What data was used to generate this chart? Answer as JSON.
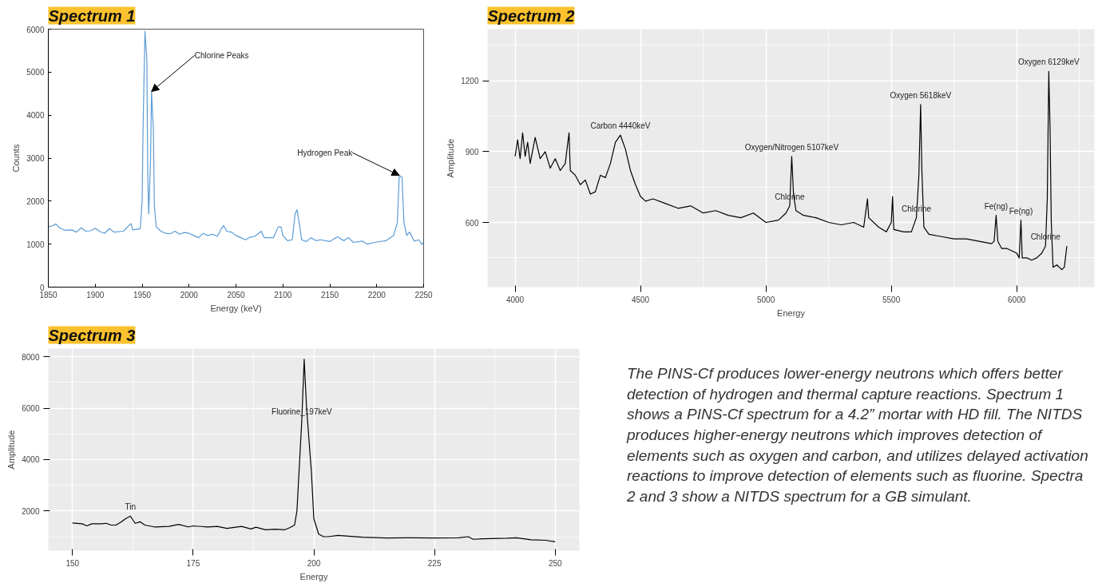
{
  "chart_data": [
    {
      "type": "line",
      "title": "Spectrum 1",
      "xlabel": "Energy (keV)",
      "ylabel": "Counts",
      "color": "#5b9bd5",
      "xlim": [
        1850,
        2250
      ],
      "ylim": [
        0,
        6000
      ],
      "xticks": [
        1850,
        1900,
        1950,
        2000,
        2050,
        2100,
        2150,
        2200,
        2250
      ],
      "yticks": [
        0,
        1000,
        2000,
        3000,
        4000,
        5000,
        6000
      ],
      "x": [
        1850,
        1855,
        1858,
        1862,
        1868,
        1875,
        1880,
        1885,
        1890,
        1895,
        1900,
        1905,
        1910,
        1915,
        1920,
        1930,
        1938,
        1940,
        1948,
        1950,
        1951,
        1953,
        1955,
        1956,
        1957,
        1959,
        1960,
        1962,
        1963,
        1965,
        1970,
        1975,
        1980,
        1985,
        1990,
        1995,
        2000,
        2005,
        2010,
        2015,
        2020,
        2025,
        2030,
        2035,
        2037,
        2040,
        2045,
        2050,
        2055,
        2060,
        2065,
        2070,
        2077,
        2080,
        2090,
        2095,
        2098,
        2100,
        2105,
        2110,
        2113,
        2115,
        2117,
        2120,
        2125,
        2130,
        2135,
        2140,
        2150,
        2158,
        2165,
        2170,
        2175,
        2185,
        2190,
        2200,
        2210,
        2218,
        2222,
        2224,
        2227,
        2229,
        2232,
        2235,
        2240,
        2245,
        2248,
        2250
      ],
      "values": [
        1400,
        1430,
        1470,
        1380,
        1320,
        1330,
        1280,
        1380,
        1300,
        1310,
        1370,
        1290,
        1250,
        1360,
        1280,
        1300,
        1480,
        1330,
        1360,
        2000,
        3700,
        5950,
        5300,
        2600,
        1700,
        3000,
        4550,
        3650,
        1900,
        1400,
        1300,
        1250,
        1240,
        1300,
        1230,
        1270,
        1250,
        1200,
        1150,
        1250,
        1200,
        1230,
        1180,
        1380,
        1430,
        1300,
        1280,
        1200,
        1150,
        1100,
        1160,
        1180,
        1300,
        1150,
        1150,
        1400,
        1400,
        1200,
        1080,
        1100,
        1700,
        1800,
        1550,
        1100,
        1060,
        1150,
        1080,
        1100,
        1060,
        1170,
        1080,
        1150,
        1040,
        1070,
        1000,
        1050,
        1080,
        1200,
        1500,
        2600,
        2550,
        1500,
        1200,
        1280,
        1070,
        1100,
        990,
        1050
      ],
      "annotations": [
        {
          "text": "Chlorine Peaks",
          "x": 1960,
          "y": 4550
        },
        {
          "text": "Hydrogen Peak",
          "x": 2224,
          "y": 2600
        }
      ]
    },
    {
      "type": "line",
      "title": "Spectrum 2",
      "xlabel": "Energy",
      "ylabel": "Amplitude",
      "color": "#000000",
      "xlim": [
        3890,
        6310
      ],
      "ylim": [
        326,
        1419
      ],
      "xticks": [
        4000,
        4500,
        5000,
        5500,
        6000
      ],
      "yticks": [
        600,
        900,
        1200
      ],
      "grid": true,
      "x": [
        4000,
        4010,
        4020,
        4030,
        4040,
        4050,
        4060,
        4080,
        4100,
        4120,
        4140,
        4160,
        4180,
        4200,
        4215,
        4220,
        4240,
        4260,
        4280,
        4300,
        4320,
        4340,
        4360,
        4380,
        4400,
        4420,
        4440,
        4460,
        4480,
        4500,
        4520,
        4550,
        4600,
        4650,
        4700,
        4750,
        4800,
        4850,
        4900,
        4950,
        5000,
        5050,
        5080,
        5095,
        5103,
        5110,
        5120,
        5150,
        5200,
        5250,
        5300,
        5350,
        5390,
        5400,
        5405,
        5410,
        5450,
        5480,
        5500,
        5505,
        5510,
        5550,
        5580,
        5600,
        5610,
        5617,
        5622,
        5630,
        5650,
        5700,
        5750,
        5800,
        5850,
        5900,
        5910,
        5918,
        5925,
        5940,
        5960,
        5980,
        6000,
        6010,
        6017,
        6022,
        6040,
        6060,
        6080,
        6100,
        6115,
        6122,
        6128,
        6133,
        6138,
        6145,
        6160,
        6180,
        6190,
        6200
      ],
      "values": [
        880,
        950,
        870,
        980,
        880,
        940,
        850,
        960,
        870,
        900,
        830,
        870,
        820,
        850,
        980,
        820,
        800,
        760,
        780,
        720,
        730,
        800,
        790,
        850,
        940,
        970,
        910,
        820,
        760,
        710,
        690,
        700,
        680,
        660,
        670,
        640,
        650,
        630,
        620,
        640,
        600,
        610,
        640,
        670,
        880,
        720,
        650,
        630,
        620,
        600,
        590,
        600,
        580,
        660,
        700,
        620,
        580,
        560,
        600,
        710,
        570,
        560,
        560,
        620,
        800,
        1100,
        820,
        580,
        550,
        540,
        530,
        530,
        520,
        510,
        520,
        630,
        520,
        490,
        490,
        480,
        470,
        450,
        610,
        450,
        450,
        440,
        450,
        470,
        500,
        700,
        1240,
        1000,
        600,
        410,
        420,
        400,
        410,
        500
      ],
      "annotations": [
        {
          "text": "Carbon 4440keV",
          "x": 4420,
          "y": 970
        },
        {
          "text": "Oxygen/Nitrogen 5107keV",
          "x": 5103,
          "y": 880
        },
        {
          "text": "Chlorine",
          "x": 5095,
          "y": 670
        },
        {
          "text": "Oxygen 5618keV",
          "x": 5617,
          "y": 1100
        },
        {
          "text": "Chlorine",
          "x": 5600,
          "y": 620
        },
        {
          "text": "Fe(ng)",
          "x": 5918,
          "y": 630
        },
        {
          "text": "Fe(ng)",
          "x": 6017,
          "y": 610
        },
        {
          "text": "Chlorine",
          "x": 6115,
          "y": 500
        },
        {
          "text": "Oxygen 6129keV",
          "x": 6128,
          "y": 1240
        }
      ]
    },
    {
      "type": "line",
      "title": "Spectrum 3",
      "xlabel": "Energy",
      "ylabel": "Amplitude",
      "color": "#000000",
      "xlim": [
        145,
        255
      ],
      "ylim": [
        457,
        8314
      ],
      "xticks": [
        150,
        175,
        200,
        225,
        250
      ],
      "yticks": [
        2000,
        4000,
        6000,
        8000
      ],
      "grid": true,
      "x": [
        150,
        152,
        153,
        154,
        156,
        157,
        158,
        159,
        160,
        161,
        162,
        163,
        164,
        165,
        167,
        170,
        172,
        174,
        175,
        178,
        180,
        182,
        185,
        187,
        188,
        190,
        192,
        194,
        195,
        196,
        196.5,
        197.5,
        198,
        198.5,
        199.5,
        200,
        201,
        202,
        203,
        205,
        210,
        215,
        220,
        225,
        230,
        232,
        233,
        235,
        240,
        242,
        245,
        248,
        250
      ],
      "values": [
        1530,
        1500,
        1420,
        1500,
        1500,
        1520,
        1450,
        1450,
        1560,
        1700,
        1800,
        1520,
        1580,
        1450,
        1380,
        1400,
        1480,
        1380,
        1420,
        1380,
        1400,
        1320,
        1400,
        1300,
        1370,
        1270,
        1290,
        1270,
        1350,
        1450,
        2000,
        5500,
        7900,
        6000,
        3500,
        1700,
        1100,
        1000,
        1000,
        1050,
        980,
        950,
        960,
        950,
        960,
        1000,
        900,
        920,
        940,
        960,
        880,
        860,
        800
      ],
      "annotations": [
        {
          "text": "Fluorine_197keV",
          "x": 197.5,
          "y": 5500
        },
        {
          "text": "Tin",
          "x": 162,
          "y": 1800
        }
      ]
    },
    {
      "type": "other",
      "annotations": [
        "The PINS-Cf produces lower-energy neutrons which offers better detection of hydrogen and thermal capture reactions. Spectrum 1 shows a PINS-Cf spectrum for a 4.2” mortar with HD fill. The NITDS produces higher-energy neutrons which improves detection of elements such as oxygen and carbon, and utilizes delayed activation reactions to improve detection of elements such as fluorine. Spectra 2 and 3 show a NITDS spectrum for a GB simulant."
      ]
    }
  ]
}
